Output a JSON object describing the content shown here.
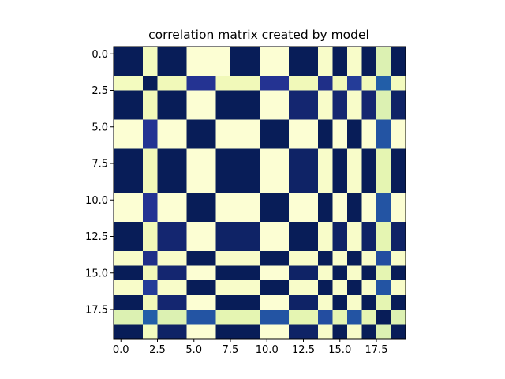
{
  "chart_data": {
    "type": "heatmap",
    "title": "correlation matrix created by model",
    "xlabel": "",
    "ylabel": "",
    "colormap": "YlGnBu",
    "vmin": 0.0,
    "vmax": 1.0,
    "xlim": [
      -0.5,
      19.5
    ],
    "ylim": [
      19.5,
      -0.5
    ],
    "x_ticks": [
      0.0,
      2.5,
      5.0,
      7.5,
      10.0,
      12.5,
      15.0,
      17.5
    ],
    "x_tick_labels": [
      "0.0",
      "2.5",
      "5.0",
      "7.5",
      "10.0",
      "12.5",
      "15.0",
      "17.5"
    ],
    "y_ticks": [
      0.0,
      2.5,
      5.0,
      7.5,
      10.0,
      12.5,
      15.0,
      17.5
    ],
    "y_tick_labels": [
      "0.0",
      "2.5",
      "5.0",
      "7.5",
      "10.0",
      "12.5",
      "15.0",
      "17.5"
    ],
    "grid": false,
    "matrix": [
      [
        1.0,
        1.0,
        0.08,
        1.0,
        1.0,
        0.02,
        0.02,
        0.02,
        1.0,
        1.0,
        0.02,
        0.02,
        1.0,
        1.0,
        0.05,
        1.0,
        0.05,
        1.0,
        0.18,
        1.0
      ],
      [
        1.0,
        1.0,
        0.08,
        1.0,
        1.0,
        0.02,
        0.02,
        0.02,
        1.0,
        1.0,
        0.02,
        0.02,
        1.0,
        1.0,
        0.05,
        1.0,
        0.05,
        1.0,
        0.18,
        1.0
      ],
      [
        0.08,
        0.08,
        1.0,
        0.1,
        0.1,
        0.88,
        0.88,
        0.1,
        0.1,
        0.1,
        0.88,
        0.88,
        0.1,
        0.1,
        0.9,
        0.1,
        0.85,
        0.1,
        0.75,
        0.08
      ],
      [
        1.0,
        1.0,
        0.1,
        1.0,
        1.0,
        0.02,
        0.02,
        1.0,
        1.0,
        1.0,
        0.02,
        0.02,
        0.95,
        0.95,
        0.05,
        0.95,
        0.05,
        0.95,
        0.18,
        0.97
      ],
      [
        1.0,
        1.0,
        0.1,
        1.0,
        1.0,
        0.02,
        0.02,
        1.0,
        1.0,
        1.0,
        0.02,
        0.02,
        0.95,
        0.95,
        0.05,
        0.95,
        0.05,
        0.95,
        0.18,
        0.97
      ],
      [
        0.02,
        0.02,
        0.88,
        0.02,
        0.02,
        1.0,
        1.0,
        0.02,
        0.02,
        0.02,
        1.0,
        1.0,
        0.02,
        0.02,
        1.0,
        0.02,
        1.0,
        0.02,
        0.78,
        0.02
      ],
      [
        0.02,
        0.02,
        0.88,
        0.02,
        0.02,
        1.0,
        1.0,
        0.02,
        0.02,
        0.02,
        1.0,
        1.0,
        0.02,
        0.02,
        1.0,
        0.02,
        1.0,
        0.02,
        0.78,
        0.02
      ],
      [
        1.0,
        1.0,
        0.1,
        1.0,
        1.0,
        0.02,
        0.02,
        1.0,
        1.0,
        1.0,
        0.02,
        0.02,
        0.97,
        0.97,
        0.05,
        1.0,
        0.05,
        1.0,
        0.15,
        1.0
      ],
      [
        1.0,
        1.0,
        0.1,
        1.0,
        1.0,
        0.02,
        0.02,
        1.0,
        1.0,
        1.0,
        0.02,
        0.02,
        0.97,
        0.97,
        0.05,
        1.0,
        0.05,
        1.0,
        0.15,
        1.0
      ],
      [
        1.0,
        1.0,
        0.1,
        1.0,
        1.0,
        0.02,
        0.02,
        1.0,
        1.0,
        1.0,
        0.02,
        0.02,
        0.97,
        0.97,
        0.05,
        1.0,
        0.05,
        1.0,
        0.15,
        1.0
      ],
      [
        0.02,
        0.02,
        0.88,
        0.02,
        0.02,
        1.0,
        1.0,
        0.02,
        0.02,
        0.02,
        1.0,
        1.0,
        0.02,
        0.02,
        1.0,
        0.02,
        1.0,
        0.02,
        0.78,
        0.02
      ],
      [
        0.02,
        0.02,
        0.88,
        0.02,
        0.02,
        1.0,
        1.0,
        0.02,
        0.02,
        0.02,
        1.0,
        1.0,
        0.02,
        0.02,
        1.0,
        0.02,
        1.0,
        0.02,
        0.78,
        0.02
      ],
      [
        1.0,
        1.0,
        0.1,
        0.95,
        0.95,
        0.02,
        0.02,
        0.97,
        0.97,
        0.97,
        0.02,
        0.02,
        1.0,
        1.0,
        0.05,
        0.97,
        0.05,
        0.97,
        0.15,
        0.97
      ],
      [
        1.0,
        1.0,
        0.1,
        0.95,
        0.95,
        0.02,
        0.02,
        0.97,
        0.97,
        0.97,
        0.02,
        0.02,
        1.0,
        1.0,
        0.05,
        0.97,
        0.05,
        0.97,
        0.15,
        0.97
      ],
      [
        0.05,
        0.05,
        0.9,
        0.05,
        0.05,
        1.0,
        1.0,
        0.05,
        0.05,
        0.05,
        1.0,
        1.0,
        0.05,
        0.05,
        1.0,
        0.05,
        1.0,
        0.05,
        0.8,
        0.05
      ],
      [
        1.0,
        1.0,
        0.1,
        0.95,
        0.95,
        0.02,
        0.02,
        1.0,
        1.0,
        1.0,
        0.02,
        0.02,
        0.97,
        0.97,
        0.05,
        1.0,
        0.05,
        1.0,
        0.15,
        1.0
      ],
      [
        0.05,
        0.05,
        0.85,
        0.05,
        0.05,
        1.0,
        1.0,
        0.05,
        0.05,
        0.05,
        1.0,
        1.0,
        0.05,
        0.05,
        1.0,
        0.05,
        1.0,
        0.05,
        0.78,
        0.05
      ],
      [
        1.0,
        1.0,
        0.1,
        0.95,
        0.95,
        0.02,
        0.02,
        1.0,
        1.0,
        1.0,
        0.02,
        0.02,
        0.97,
        0.97,
        0.05,
        1.0,
        0.05,
        1.0,
        0.15,
        1.0
      ],
      [
        0.18,
        0.18,
        0.75,
        0.18,
        0.18,
        0.78,
        0.78,
        0.15,
        0.15,
        0.15,
        0.78,
        0.78,
        0.15,
        0.15,
        0.8,
        0.15,
        0.78,
        0.15,
        1.0,
        0.18
      ],
      [
        1.0,
        1.0,
        0.08,
        0.97,
        0.97,
        0.02,
        0.02,
        1.0,
        1.0,
        1.0,
        0.02,
        0.02,
        0.97,
        0.97,
        0.05,
        1.0,
        0.05,
        1.0,
        0.18,
        1.0
      ]
    ]
  }
}
